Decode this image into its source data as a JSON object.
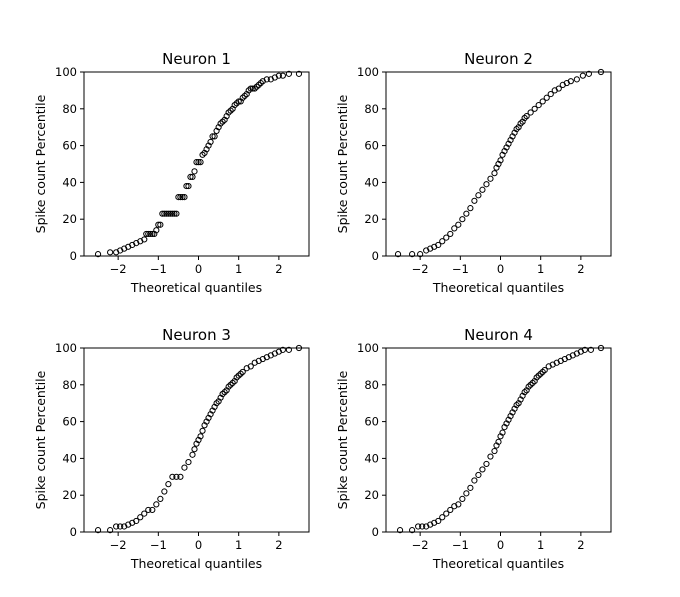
{
  "figure": {
    "subplot_titles": [
      "Neuron 1",
      "Neuron 2",
      "Neuron 3",
      "Neuron 4"
    ],
    "xlabel": "Theoretical quantiles",
    "ylabel": "Spike count Percentile"
  },
  "chart_data": [
    {
      "type": "scatter",
      "title": "Neuron 1",
      "xlabel": "Theoretical quantiles",
      "ylabel": "Spike count Percentile",
      "xlim": [
        -2.85,
        2.75
      ],
      "ylim": [
        0,
        100
      ],
      "xticks": [
        -2,
        -1,
        0,
        1,
        2
      ],
      "yticks": [
        0,
        20,
        40,
        60,
        80,
        100
      ],
      "grid": false,
      "marker": "open-circle",
      "x": [
        -2.5,
        -2.2,
        -2.05,
        -1.95,
        -1.85,
        -1.75,
        -1.65,
        -1.55,
        -1.45,
        -1.35,
        -1.3,
        -1.25,
        -1.2,
        -1.15,
        -1.1,
        -1.05,
        -1.0,
        -0.95,
        -0.9,
        -0.85,
        -0.8,
        -0.75,
        -0.7,
        -0.65,
        -0.6,
        -0.55,
        -0.5,
        -0.45,
        -0.4,
        -0.35,
        -0.3,
        -0.25,
        -0.2,
        -0.15,
        -0.1,
        -0.05,
        0.0,
        0.05,
        0.1,
        0.15,
        0.2,
        0.25,
        0.3,
        0.35,
        0.4,
        0.45,
        0.5,
        0.55,
        0.6,
        0.65,
        0.7,
        0.75,
        0.8,
        0.85,
        0.9,
        0.95,
        1.0,
        1.05,
        1.1,
        1.15,
        1.2,
        1.25,
        1.3,
        1.35,
        1.4,
        1.45,
        1.5,
        1.55,
        1.6,
        1.7,
        1.8,
        1.9,
        2.0,
        2.1,
        2.25,
        2.5
      ],
      "y": [
        1,
        2,
        2,
        3,
        4,
        5,
        6,
        7,
        8,
        9,
        12,
        12,
        12,
        12,
        12,
        14,
        17,
        17,
        23,
        23,
        23,
        23,
        23,
        23,
        23,
        23,
        32,
        32,
        32,
        32,
        38,
        38,
        43,
        43,
        46,
        51,
        51,
        51,
        55,
        56,
        58,
        60,
        62,
        65,
        65,
        68,
        70,
        72,
        73,
        74,
        76,
        78,
        79,
        80,
        82,
        83,
        84,
        84,
        86,
        87,
        88,
        90,
        91,
        91,
        91,
        92,
        93,
        94,
        95,
        96,
        96,
        97,
        98,
        98,
        99,
        99
      ]
    },
    {
      "type": "scatter",
      "title": "Neuron 2",
      "xlabel": "Theoretical quantiles",
      "ylabel": "Spike count Percentile",
      "xlim": [
        -2.85,
        2.75
      ],
      "ylim": [
        0,
        100
      ],
      "xticks": [
        -2,
        -1,
        0,
        1,
        2
      ],
      "yticks": [
        0,
        20,
        40,
        60,
        80,
        100
      ],
      "grid": false,
      "marker": "open-circle",
      "x": [
        -2.55,
        -2.2,
        -2.0,
        -1.85,
        -1.75,
        -1.65,
        -1.55,
        -1.45,
        -1.35,
        -1.25,
        -1.15,
        -1.05,
        -0.95,
        -0.85,
        -0.75,
        -0.65,
        -0.55,
        -0.45,
        -0.35,
        -0.25,
        -0.15,
        -0.1,
        -0.05,
        0.0,
        0.05,
        0.1,
        0.15,
        0.2,
        0.25,
        0.3,
        0.35,
        0.4,
        0.45,
        0.5,
        0.55,
        0.6,
        0.65,
        0.75,
        0.85,
        0.95,
        1.05,
        1.15,
        1.25,
        1.35,
        1.45,
        1.55,
        1.65,
        1.75,
        1.9,
        2.05,
        2.2,
        2.5
      ],
      "y": [
        1,
        1,
        1,
        3,
        4,
        5,
        6,
        8,
        10,
        12,
        15,
        17,
        20,
        23,
        26,
        30,
        33,
        36,
        39,
        42,
        45,
        48,
        50,
        52,
        55,
        57,
        59,
        61,
        63,
        65,
        67,
        69,
        70,
        72,
        73,
        75,
        76,
        78,
        80,
        82,
        84,
        86,
        88,
        90,
        91,
        93,
        94,
        95,
        96,
        98,
        99,
        100
      ]
    },
    {
      "type": "scatter",
      "title": "Neuron 3",
      "xlabel": "Theoretical quantiles",
      "ylabel": "Spike count Percentile",
      "xlim": [
        -2.85,
        2.75
      ],
      "ylim": [
        0,
        100
      ],
      "xticks": [
        -2,
        -1,
        0,
        1,
        2
      ],
      "yticks": [
        0,
        20,
        40,
        60,
        80,
        100
      ],
      "grid": false,
      "marker": "open-circle",
      "x": [
        -2.5,
        -2.2,
        -2.05,
        -1.95,
        -1.85,
        -1.75,
        -1.65,
        -1.55,
        -1.45,
        -1.35,
        -1.25,
        -1.15,
        -1.05,
        -0.95,
        -0.85,
        -0.75,
        -0.65,
        -0.55,
        -0.45,
        -0.35,
        -0.25,
        -0.15,
        -0.1,
        -0.05,
        0.0,
        0.05,
        0.1,
        0.15,
        0.2,
        0.25,
        0.3,
        0.35,
        0.4,
        0.45,
        0.5,
        0.55,
        0.6,
        0.65,
        0.7,
        0.75,
        0.8,
        0.85,
        0.9,
        0.95,
        1.0,
        1.05,
        1.1,
        1.2,
        1.3,
        1.4,
        1.5,
        1.6,
        1.7,
        1.8,
        1.9,
        2.0,
        2.1,
        2.25,
        2.5
      ],
      "y": [
        1,
        1,
        3,
        3,
        3,
        4,
        5,
        6,
        8,
        10,
        12,
        12,
        15,
        18,
        22,
        26,
        30,
        30,
        30,
        35,
        38,
        42,
        45,
        48,
        50,
        52,
        55,
        58,
        60,
        62,
        64,
        66,
        68,
        70,
        71,
        73,
        75,
        76,
        77,
        79,
        80,
        81,
        82,
        84,
        85,
        86,
        87,
        89,
        90,
        92,
        93,
        94,
        95,
        96,
        97,
        98,
        99,
        99,
        100
      ]
    },
    {
      "type": "scatter",
      "title": "Neuron 4",
      "xlabel": "Theoretical quantiles",
      "ylabel": "Spike count Percentile",
      "xlim": [
        -2.85,
        2.75
      ],
      "ylim": [
        0,
        100
      ],
      "xticks": [
        -2,
        -1,
        0,
        1,
        2
      ],
      "yticks": [
        0,
        20,
        40,
        60,
        80,
        100
      ],
      "grid": false,
      "marker": "open-circle",
      "x": [
        -2.5,
        -2.2,
        -2.05,
        -1.95,
        -1.85,
        -1.75,
        -1.65,
        -1.55,
        -1.45,
        -1.35,
        -1.25,
        -1.15,
        -1.05,
        -0.95,
        -0.85,
        -0.75,
        -0.65,
        -0.55,
        -0.45,
        -0.35,
        -0.25,
        -0.15,
        -0.1,
        -0.05,
        0.0,
        0.05,
        0.1,
        0.15,
        0.2,
        0.25,
        0.3,
        0.35,
        0.4,
        0.45,
        0.5,
        0.55,
        0.6,
        0.65,
        0.7,
        0.75,
        0.8,
        0.85,
        0.9,
        0.95,
        1.0,
        1.05,
        1.1,
        1.2,
        1.3,
        1.4,
        1.5,
        1.6,
        1.7,
        1.8,
        1.9,
        2.0,
        2.1,
        2.25,
        2.5
      ],
      "y": [
        1,
        1,
        3,
        3,
        3,
        4,
        5,
        6,
        8,
        10,
        12,
        14,
        15,
        18,
        21,
        24,
        28,
        31,
        34,
        37,
        41,
        44,
        47,
        49,
        52,
        54,
        57,
        59,
        61,
        63,
        65,
        67,
        69,
        70,
        72,
        74,
        76,
        77,
        79,
        80,
        81,
        82,
        84,
        85,
        86,
        87,
        88,
        90,
        91,
        92,
        93,
        94,
        95,
        96,
        97,
        98,
        99,
        99,
        100
      ]
    }
  ]
}
